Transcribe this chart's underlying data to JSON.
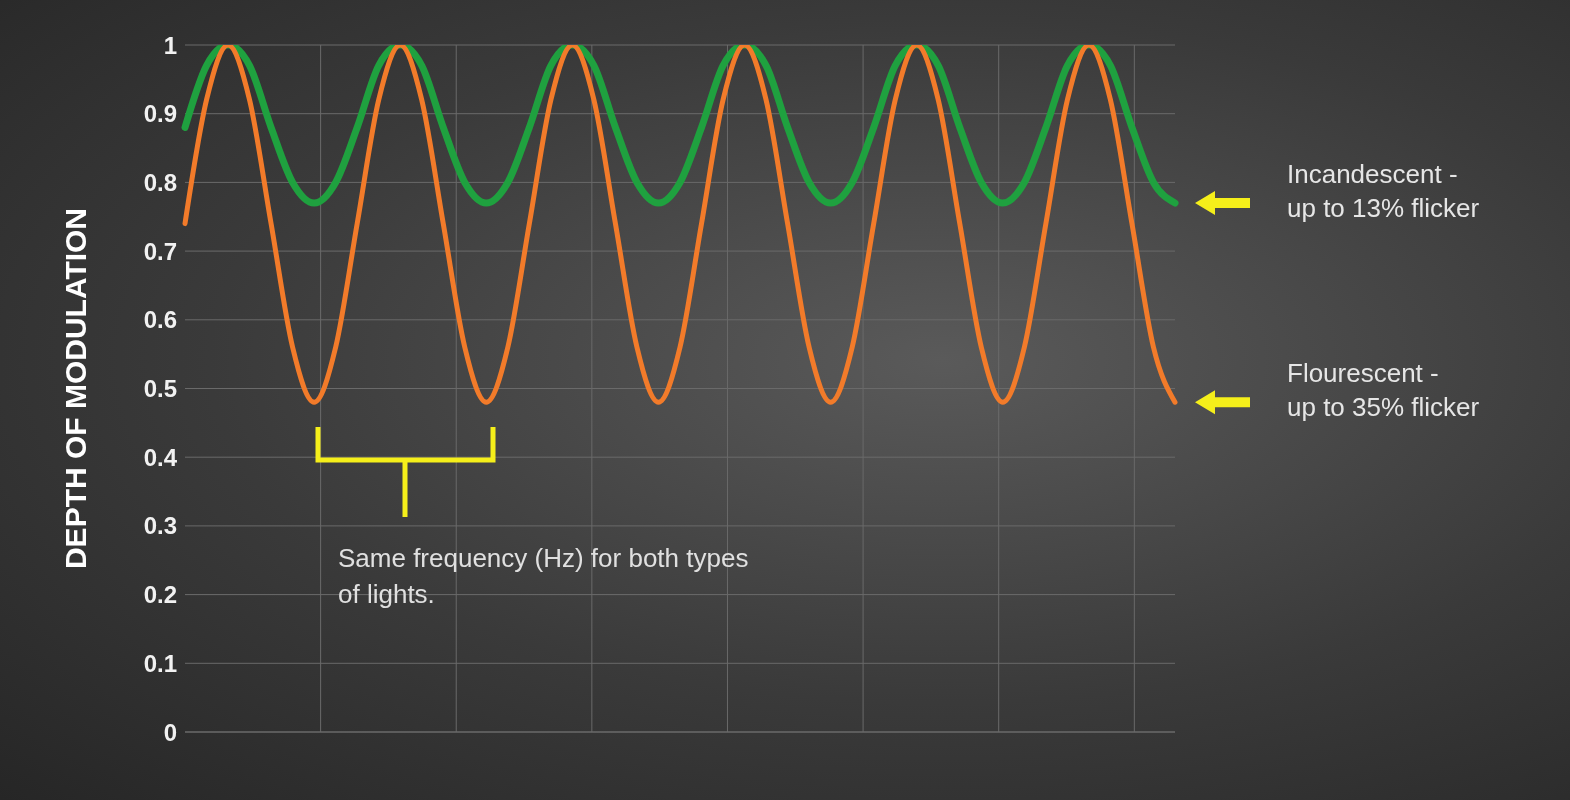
{
  "chart_data": {
    "type": "line",
    "ylabel": "DEPTH OF MODULATION",
    "categories": [
      null,
      null,
      null,
      null,
      null,
      null,
      null,
      null,
      null,
      null,
      null,
      null,
      null,
      null,
      null,
      null,
      null,
      null,
      null,
      null,
      null,
      null,
      null,
      null,
      null,
      null,
      null,
      null,
      null,
      null,
      null,
      null,
      null,
      null,
      null,
      null,
      null,
      null,
      null,
      null,
      null,
      null,
      null,
      null,
      null,
      null,
      null
    ],
    "series": [
      {
        "name": "Incandescent - up to 13% flicker",
        "color": "#1fa13f",
        "values": [
          0.88,
          0.97,
          1,
          0.97,
          0.88,
          0.8,
          0.77,
          0.8,
          0.88,
          0.97,
          1,
          0.97,
          0.88,
          0.8,
          0.77,
          0.8,
          0.88,
          0.97,
          1,
          0.97,
          0.88,
          0.8,
          0.77,
          0.8,
          0.88,
          0.97,
          1,
          0.97,
          0.88,
          0.8,
          0.77,
          0.8,
          0.88,
          0.97,
          1,
          0.97,
          0.88,
          0.8,
          0.77,
          0.8,
          0.88,
          0.97,
          1,
          0.97,
          0.88,
          0.8,
          0.77
        ]
      },
      {
        "name": "Flourescent - up to 35% flicker",
        "color": "#f27b2a",
        "values": [
          0.74,
          0.92,
          1,
          0.92,
          0.74,
          0.56,
          0.48,
          0.56,
          0.74,
          0.92,
          1,
          0.92,
          0.74,
          0.56,
          0.48,
          0.56,
          0.74,
          0.92,
          1,
          0.92,
          0.74,
          0.56,
          0.48,
          0.56,
          0.74,
          0.92,
          1,
          0.92,
          0.74,
          0.56,
          0.48,
          0.56,
          0.74,
          0.92,
          1,
          0.92,
          0.74,
          0.56,
          0.48,
          0.56,
          0.74,
          0.92,
          1,
          0.92,
          0.74,
          0.56,
          0.48
        ]
      }
    ],
    "ylim": [
      0,
      1
    ],
    "yticks": [
      0,
      0.1,
      0.2,
      0.3,
      0.4,
      0.5,
      0.6,
      0.7,
      0.8,
      0.9,
      1
    ],
    "grid": true,
    "tick_labels": "y",
    "marker": "none",
    "line_style": "solid",
    "legend": false,
    "annotations": [
      "Same frequency (Hz) for both types of lights."
    ]
  }
}
